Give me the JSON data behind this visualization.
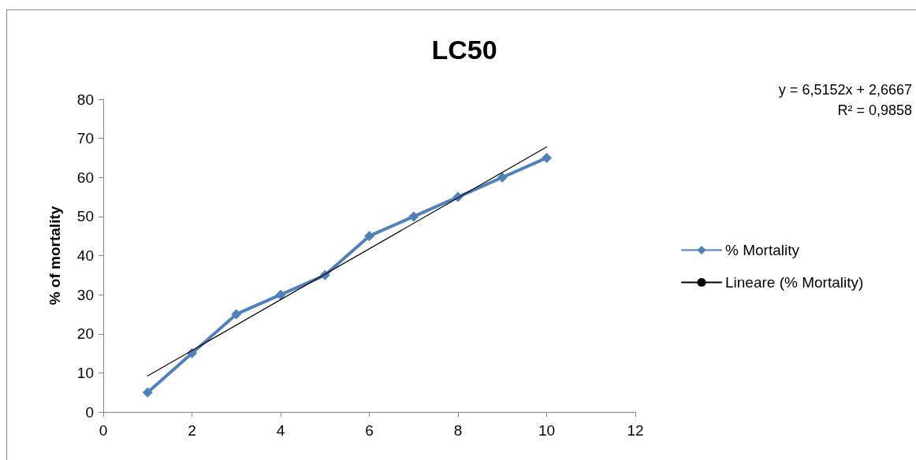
{
  "chart_data": {
    "type": "line",
    "title": "LC50",
    "ylabel": "% of mortality",
    "x": [
      1,
      2,
      3,
      4,
      5,
      6,
      7,
      8,
      9,
      10
    ],
    "series": [
      {
        "name": "% Mortality",
        "color": "#4f81bd",
        "marker": "diamond",
        "values": [
          5,
          15,
          25,
          30,
          35,
          45,
          50,
          55,
          60,
          65
        ]
      },
      {
        "name": "Lineare (% Mortality)",
        "color": "#000000",
        "marker": "none",
        "x": [
          1,
          10
        ],
        "values": [
          9.2,
          67.8
        ]
      }
    ],
    "xlim": [
      0,
      12
    ],
    "xticks": [
      0,
      2,
      4,
      6,
      8,
      10,
      12
    ],
    "ylim": [
      0,
      80
    ],
    "yticks": [
      0,
      10,
      20,
      30,
      40,
      50,
      60,
      70,
      80
    ],
    "grid": false,
    "legend": "right",
    "annotations": [
      "y = 6,5152x + 2,6667",
      "R² = 0,9858"
    ]
  }
}
